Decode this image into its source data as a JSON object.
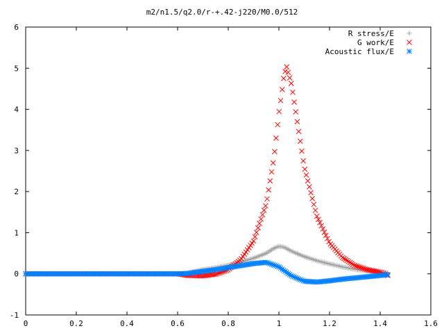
{
  "chart_data": {
    "type": "scatter",
    "title": "m2/n1.5/q2.0/r-+.42-j220/M0.0/512",
    "xlabel": "",
    "ylabel": "",
    "xlim": [
      0,
      1.6
    ],
    "ylim": [
      -1,
      6
    ],
    "x_ticks": [
      "0",
      "0.2",
      "0.4",
      "0.6",
      "0.8",
      "1",
      "1.2",
      "1.4",
      "1.6"
    ],
    "y_ticks": [
      "-1",
      "0",
      "1",
      "2",
      "3",
      "4",
      "5",
      "6"
    ],
    "grid": false,
    "legend_position": "top-right",
    "series": [
      {
        "name": "R stress/E",
        "marker": "plus",
        "color": "#a0a0a0",
        "points": [
          [
            0,
            0
          ],
          [
            0.3,
            0
          ],
          [
            0.6,
            0
          ],
          [
            0.64,
            0.01
          ],
          [
            0.66,
            0.05
          ],
          [
            0.7,
            0.1
          ],
          [
            0.75,
            0.15
          ],
          [
            0.8,
            0.21
          ],
          [
            0.85,
            0.29
          ],
          [
            0.9,
            0.38
          ],
          [
            0.95,
            0.5
          ],
          [
            0.98,
            0.62
          ],
          [
            1.0,
            0.67
          ],
          [
            1.02,
            0.65
          ],
          [
            1.05,
            0.55
          ],
          [
            1.1,
            0.42
          ],
          [
            1.15,
            0.32
          ],
          [
            1.2,
            0.24
          ],
          [
            1.25,
            0.17
          ],
          [
            1.3,
            0.11
          ],
          [
            1.35,
            0.07
          ],
          [
            1.4,
            0.04
          ],
          [
            1.43,
            0.03
          ]
        ]
      },
      {
        "name": "G work/E",
        "marker": "cross",
        "color": "#ff0000",
        "points": [
          [
            0,
            0
          ],
          [
            0.3,
            0
          ],
          [
            0.6,
            0
          ],
          [
            0.64,
            -0.04
          ],
          [
            0.7,
            -0.05
          ],
          [
            0.75,
            -0.01
          ],
          [
            0.8,
            0.1
          ],
          [
            0.85,
            0.35
          ],
          [
            0.9,
            0.8
          ],
          [
            0.95,
            1.7
          ],
          [
            0.98,
            2.8
          ],
          [
            1.0,
            3.9
          ],
          [
            1.02,
            4.8
          ],
          [
            1.03,
            5.05
          ],
          [
            1.05,
            4.6
          ],
          [
            1.08,
            3.4
          ],
          [
            1.1,
            2.6
          ],
          [
            1.15,
            1.4
          ],
          [
            1.2,
            0.75
          ],
          [
            1.25,
            0.4
          ],
          [
            1.3,
            0.2
          ],
          [
            1.35,
            0.1
          ],
          [
            1.4,
            0.04
          ],
          [
            1.43,
            -0.04
          ]
        ]
      },
      {
        "name": "Acoustic flux/E",
        "marker": "star",
        "color": "#0080ff",
        "points": [
          [
            0,
            0
          ],
          [
            0.3,
            0
          ],
          [
            0.6,
            0
          ],
          [
            0.64,
            0.01
          ],
          [
            0.7,
            0.06
          ],
          [
            0.75,
            0.1
          ],
          [
            0.8,
            0.15
          ],
          [
            0.85,
            0.2
          ],
          [
            0.9,
            0.25
          ],
          [
            0.95,
            0.28
          ],
          [
            1.0,
            0.17
          ],
          [
            1.05,
            -0.05
          ],
          [
            1.1,
            -0.18
          ],
          [
            1.15,
            -0.2
          ],
          [
            1.2,
            -0.17
          ],
          [
            1.25,
            -0.13
          ],
          [
            1.3,
            -0.1
          ],
          [
            1.35,
            -0.07
          ],
          [
            1.4,
            -0.04
          ],
          [
            1.43,
            -0.02
          ]
        ]
      }
    ]
  }
}
